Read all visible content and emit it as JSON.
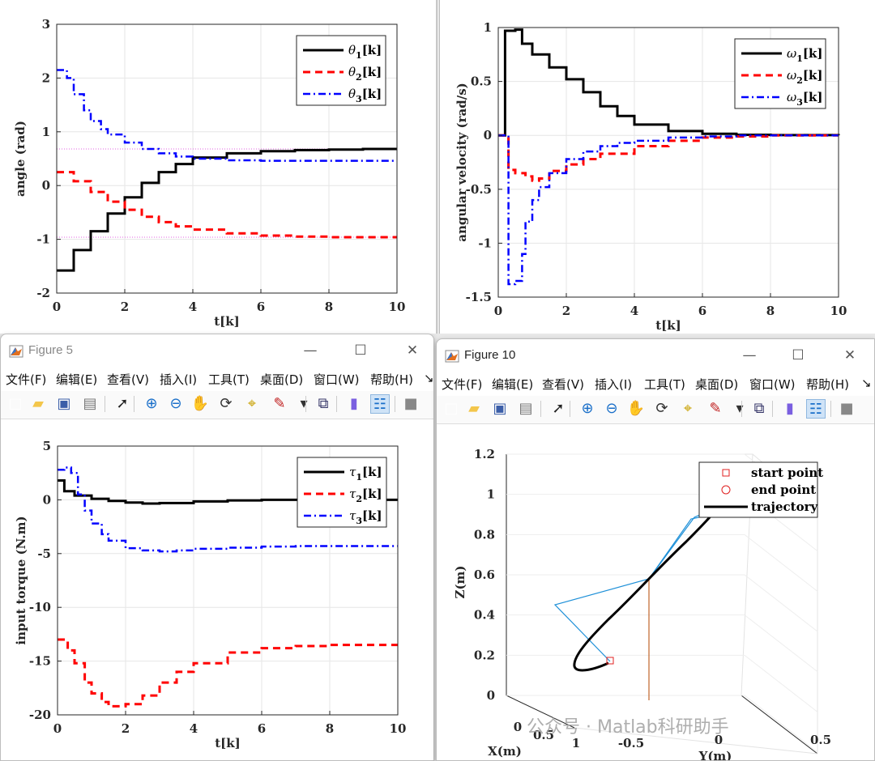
{
  "top_left_plot": {
    "ylabel": "angle (rad)",
    "xlabel": "t[k]",
    "xticks": [
      "0",
      "2",
      "4",
      "6",
      "8",
      "10"
    ],
    "yticks": [
      "3",
      "2",
      "1",
      "0",
      "-1",
      "-2"
    ],
    "legend": [
      {
        "sym": "θ",
        "sub": "1",
        "rest": "[k]"
      },
      {
        "sym": "θ",
        "sub": "2",
        "rest": "[k]"
      },
      {
        "sym": "θ",
        "sub": "3",
        "rest": "[k]"
      }
    ]
  },
  "top_right_plot": {
    "ylabel": "angular velocity (rad/s)",
    "xlabel": "t[k]",
    "xticks": [
      "0",
      "2",
      "4",
      "6",
      "8",
      "10"
    ],
    "yticks": [
      "1",
      "0.5",
      "0",
      "-0.5",
      "-1",
      "-1.5"
    ],
    "legend": [
      {
        "sym": "ω",
        "sub": "1",
        "rest": "[k]"
      },
      {
        "sym": "ω",
        "sub": "2",
        "rest": "[k]"
      },
      {
        "sym": "ω",
        "sub": "3",
        "rest": "[k]"
      }
    ]
  },
  "figure5": {
    "title": "Figure 5",
    "menu": [
      "文件(F)",
      "编辑(E)",
      "查看(V)",
      "插入(I)",
      "工具(T)",
      "桌面(D)",
      "窗口(W)",
      "帮助(H)"
    ],
    "plot": {
      "ylabel": "input torque (N.m)",
      "xlabel": "t[k]",
      "xticks": [
        "0",
        "2",
        "4",
        "6",
        "8",
        "10"
      ],
      "yticks": [
        "5",
        "0",
        "-5",
        "-10",
        "-15",
        "-20"
      ],
      "legend": [
        {
          "sym": "τ",
          "sub": "1",
          "rest": "[k]"
        },
        {
          "sym": "τ",
          "sub": "2",
          "rest": "[k]"
        },
        {
          "sym": "τ",
          "sub": "3",
          "rest": "[k]"
        }
      ]
    }
  },
  "figure10": {
    "title": "Figure 10",
    "menu": [
      "文件(F)",
      "编辑(E)",
      "查看(V)",
      "插入(I)",
      "工具(T)",
      "桌面(D)",
      "窗口(W)",
      "帮助(H)"
    ],
    "plot": {
      "zlabel": "Z(m)",
      "xlabel": "X(m)",
      "ylabel": "Y(m)",
      "zticks": [
        "1.2",
        "1",
        "0.8",
        "0.6",
        "0.4",
        "0.2",
        "0"
      ],
      "xticks": [
        "0",
        "0.5",
        "1"
      ],
      "yticks": [
        "-0.5",
        "0",
        "0.5"
      ],
      "legend": [
        "start point",
        "end point",
        "trajectory"
      ]
    }
  },
  "watermark": "公众号 · Matlab科研助手",
  "chart_data": [
    {
      "type": "line",
      "title": "",
      "xlabel": "t[k]",
      "ylabel": "angle (rad)",
      "xlim": [
        0,
        10
      ],
      "ylim": [
        -2,
        3
      ],
      "series": [
        {
          "name": "θ1[k]",
          "style": "solid-black",
          "x": [
            0,
            0.5,
            1,
            1.5,
            2,
            2.5,
            3,
            3.5,
            4,
            5,
            6,
            7,
            8,
            9,
            10
          ],
          "y": [
            -1.58,
            -1.2,
            -0.85,
            -0.52,
            -0.22,
            0.05,
            0.25,
            0.4,
            0.52,
            0.6,
            0.64,
            0.66,
            0.67,
            0.68,
            0.68
          ]
        },
        {
          "name": "θ2[k]",
          "style": "dashed-red",
          "x": [
            0,
            0.5,
            1,
            1.5,
            2,
            2.5,
            3,
            3.5,
            4,
            5,
            6,
            7,
            8,
            9,
            10
          ],
          "y": [
            0.25,
            0.08,
            -0.12,
            -0.3,
            -0.45,
            -0.58,
            -0.68,
            -0.76,
            -0.82,
            -0.89,
            -0.93,
            -0.95,
            -0.96,
            -0.96,
            -0.96
          ]
        },
        {
          "name": "θ3[k]",
          "style": "dashdot-blue",
          "x": [
            0,
            0.3,
            0.5,
            0.8,
            1,
            1.3,
            1.5,
            2,
            2.5,
            3,
            3.5,
            4,
            5,
            6,
            7,
            8,
            9,
            10
          ],
          "y": [
            2.15,
            2.0,
            1.7,
            1.4,
            1.2,
            1.05,
            0.95,
            0.8,
            0.68,
            0.6,
            0.54,
            0.5,
            0.47,
            0.46,
            0.46,
            0.46,
            0.46,
            0.46
          ]
        }
      ]
    },
    {
      "type": "line",
      "title": "",
      "xlabel": "t[k]",
      "ylabel": "angular velocity (rad/s)",
      "xlim": [
        0,
        10
      ],
      "ylim": [
        -1.5,
        1
      ],
      "series": [
        {
          "name": "ω1[k]",
          "style": "solid-black",
          "x": [
            0,
            0.1,
            0.2,
            0.5,
            0.7,
            1,
            1.5,
            2,
            2.5,
            3,
            3.5,
            4,
            5,
            6,
            7,
            8,
            10
          ],
          "y": [
            0,
            0,
            0.97,
            0.98,
            0.85,
            0.75,
            0.63,
            0.52,
            0.4,
            0.27,
            0.18,
            0.1,
            0.04,
            0.015,
            0.005,
            0.002,
            0
          ]
        },
        {
          "name": "ω2[k]",
          "style": "dashed-red",
          "x": [
            0,
            0.2,
            0.3,
            0.5,
            0.8,
            1,
            1.2,
            1.5,
            2,
            2.5,
            3,
            4,
            5,
            6,
            7,
            8,
            10
          ],
          "y": [
            0,
            0,
            -0.32,
            -0.35,
            -0.38,
            -0.42,
            -0.4,
            -0.33,
            -0.27,
            -0.22,
            -0.17,
            -0.1,
            -0.05,
            -0.02,
            -0.01,
            0,
            0
          ]
        },
        {
          "name": "ω3[k]",
          "style": "dashdot-blue",
          "x": [
            0,
            0.2,
            0.3,
            0.5,
            0.7,
            0.8,
            1,
            1.2,
            1.5,
            2,
            2.5,
            3,
            3.5,
            4,
            5,
            6,
            7,
            8,
            10
          ],
          "y": [
            0,
            0,
            -1.38,
            -1.35,
            -1.1,
            -0.8,
            -0.6,
            -0.48,
            -0.35,
            -0.22,
            -0.15,
            -0.1,
            -0.07,
            -0.05,
            -0.02,
            -0.01,
            0,
            0,
            0
          ]
        }
      ]
    },
    {
      "type": "line",
      "title": "",
      "xlabel": "t[k]",
      "ylabel": "input torque (N.m)",
      "xlim": [
        0,
        10
      ],
      "ylim": [
        -20,
        5
      ],
      "series": [
        {
          "name": "τ1[k]",
          "style": "solid-black",
          "x": [
            0,
            0.2,
            0.5,
            1,
            1.5,
            2,
            2.5,
            3,
            4,
            5,
            6,
            7,
            8,
            9,
            10
          ],
          "y": [
            1.8,
            0.8,
            0.4,
            0.1,
            -0.1,
            -0.25,
            -0.35,
            -0.3,
            -0.15,
            -0.05,
            0,
            0,
            0,
            0,
            0
          ]
        },
        {
          "name": "τ2[k]",
          "style": "dashed-red",
          "x": [
            0,
            0.3,
            0.5,
            0.8,
            1,
            1.3,
            1.5,
            2,
            2.5,
            3,
            3.5,
            4,
            5,
            6,
            7,
            8,
            9,
            10
          ],
          "y": [
            -13,
            -14,
            -15.2,
            -17,
            -18,
            -18.8,
            -19.2,
            -19,
            -18.2,
            -17,
            -16,
            -15.2,
            -14.2,
            -13.8,
            -13.6,
            -13.5,
            -13.5,
            -13.5
          ]
        },
        {
          "name": "τ3[k]",
          "style": "dashdot-blue",
          "x": [
            0,
            0.2,
            0.4,
            0.6,
            0.8,
            1,
            1.3,
            1.5,
            2,
            2.5,
            3,
            3.5,
            4,
            5,
            6,
            7,
            8,
            9,
            10
          ],
          "y": [
            2.8,
            3.0,
            2.5,
            0.5,
            -1,
            -2.2,
            -3.2,
            -3.8,
            -4.5,
            -4.7,
            -4.8,
            -4.7,
            -4.55,
            -4.45,
            -4.35,
            -4.3,
            -4.3,
            -4.3,
            -4.3
          ]
        }
      ]
    },
    {
      "type": "line3d",
      "title": "",
      "xlabel": "X(m)",
      "ylabel": "Y(m)",
      "zlabel": "Z(m)",
      "zlim": [
        0,
        1.2
      ],
      "series": [
        {
          "name": "start point",
          "marker": "square-red"
        },
        {
          "name": "end point",
          "marker": "circle-red"
        },
        {
          "name": "trajectory",
          "style": "solid-black"
        }
      ]
    }
  ]
}
